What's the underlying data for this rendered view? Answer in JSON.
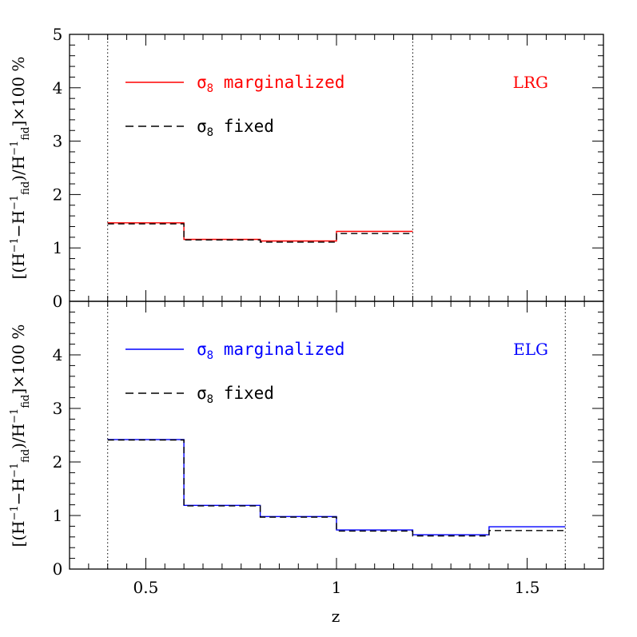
{
  "chart_data": [
    {
      "type": "line",
      "tag": "LRG",
      "tag_color": "#ff0000",
      "xlabel": "z",
      "ylabel": "[(H⁻¹−H⁻¹fid)/H⁻¹fid]×100 %",
      "xlim": [
        0.3,
        1.7
      ],
      "ylim": [
        0,
        5
      ],
      "y_ticks": [
        "0",
        "1",
        "2",
        "3",
        "4",
        "5"
      ],
      "x_ticks": [],
      "vlines": [
        0.4,
        1.2
      ],
      "legend": [
        {
          "label": "σ8 marginalized",
          "color": "#ff0000",
          "style": "solid"
        },
        {
          "label": "σ8 fixed",
          "color": "#000000",
          "style": "dashed"
        }
      ],
      "series": [
        {
          "name": "σ8 marginalized",
          "color": "#ff0000",
          "style": "solid",
          "edges": [
            0.4,
            0.6,
            0.8,
            1.0,
            1.2
          ],
          "values": [
            1.47,
            1.16,
            1.13,
            1.31
          ]
        },
        {
          "name": "σ8 fixed",
          "color": "#000000",
          "style": "dashed",
          "edges": [
            0.4,
            0.6,
            0.8,
            1.0,
            1.2
          ],
          "values": [
            1.45,
            1.15,
            1.11,
            1.27
          ]
        }
      ]
    },
    {
      "type": "line",
      "tag": "ELG",
      "tag_color": "#0000ff",
      "xlabel": "z",
      "ylabel": "[(H⁻¹−H⁻¹fid)/H⁻¹fid]×100 %",
      "xlim": [
        0.3,
        1.7
      ],
      "ylim": [
        0,
        5
      ],
      "y_ticks": [
        "0",
        "1",
        "2",
        "3",
        "4"
      ],
      "x_ticks": [
        "0.5",
        "1",
        "1.5"
      ],
      "vlines": [
        0.4,
        1.6
      ],
      "legend": [
        {
          "label": "σ8 marginalized",
          "color": "#0000ff",
          "style": "solid"
        },
        {
          "label": "σ8 fixed",
          "color": "#000000",
          "style": "dashed"
        }
      ],
      "series": [
        {
          "name": "σ8 marginalized",
          "color": "#0000ff",
          "style": "solid",
          "edges": [
            0.4,
            0.6,
            0.8,
            1.0,
            1.2,
            1.4,
            1.6
          ],
          "values": [
            2.42,
            1.19,
            0.98,
            0.73,
            0.64,
            0.79
          ]
        },
        {
          "name": "σ8 fixed",
          "color": "#000000",
          "style": "dashed",
          "edges": [
            0.4,
            0.6,
            0.8,
            1.0,
            1.2,
            1.4,
            1.6
          ],
          "values": [
            2.41,
            1.18,
            0.97,
            0.71,
            0.62,
            0.72
          ]
        }
      ]
    }
  ]
}
